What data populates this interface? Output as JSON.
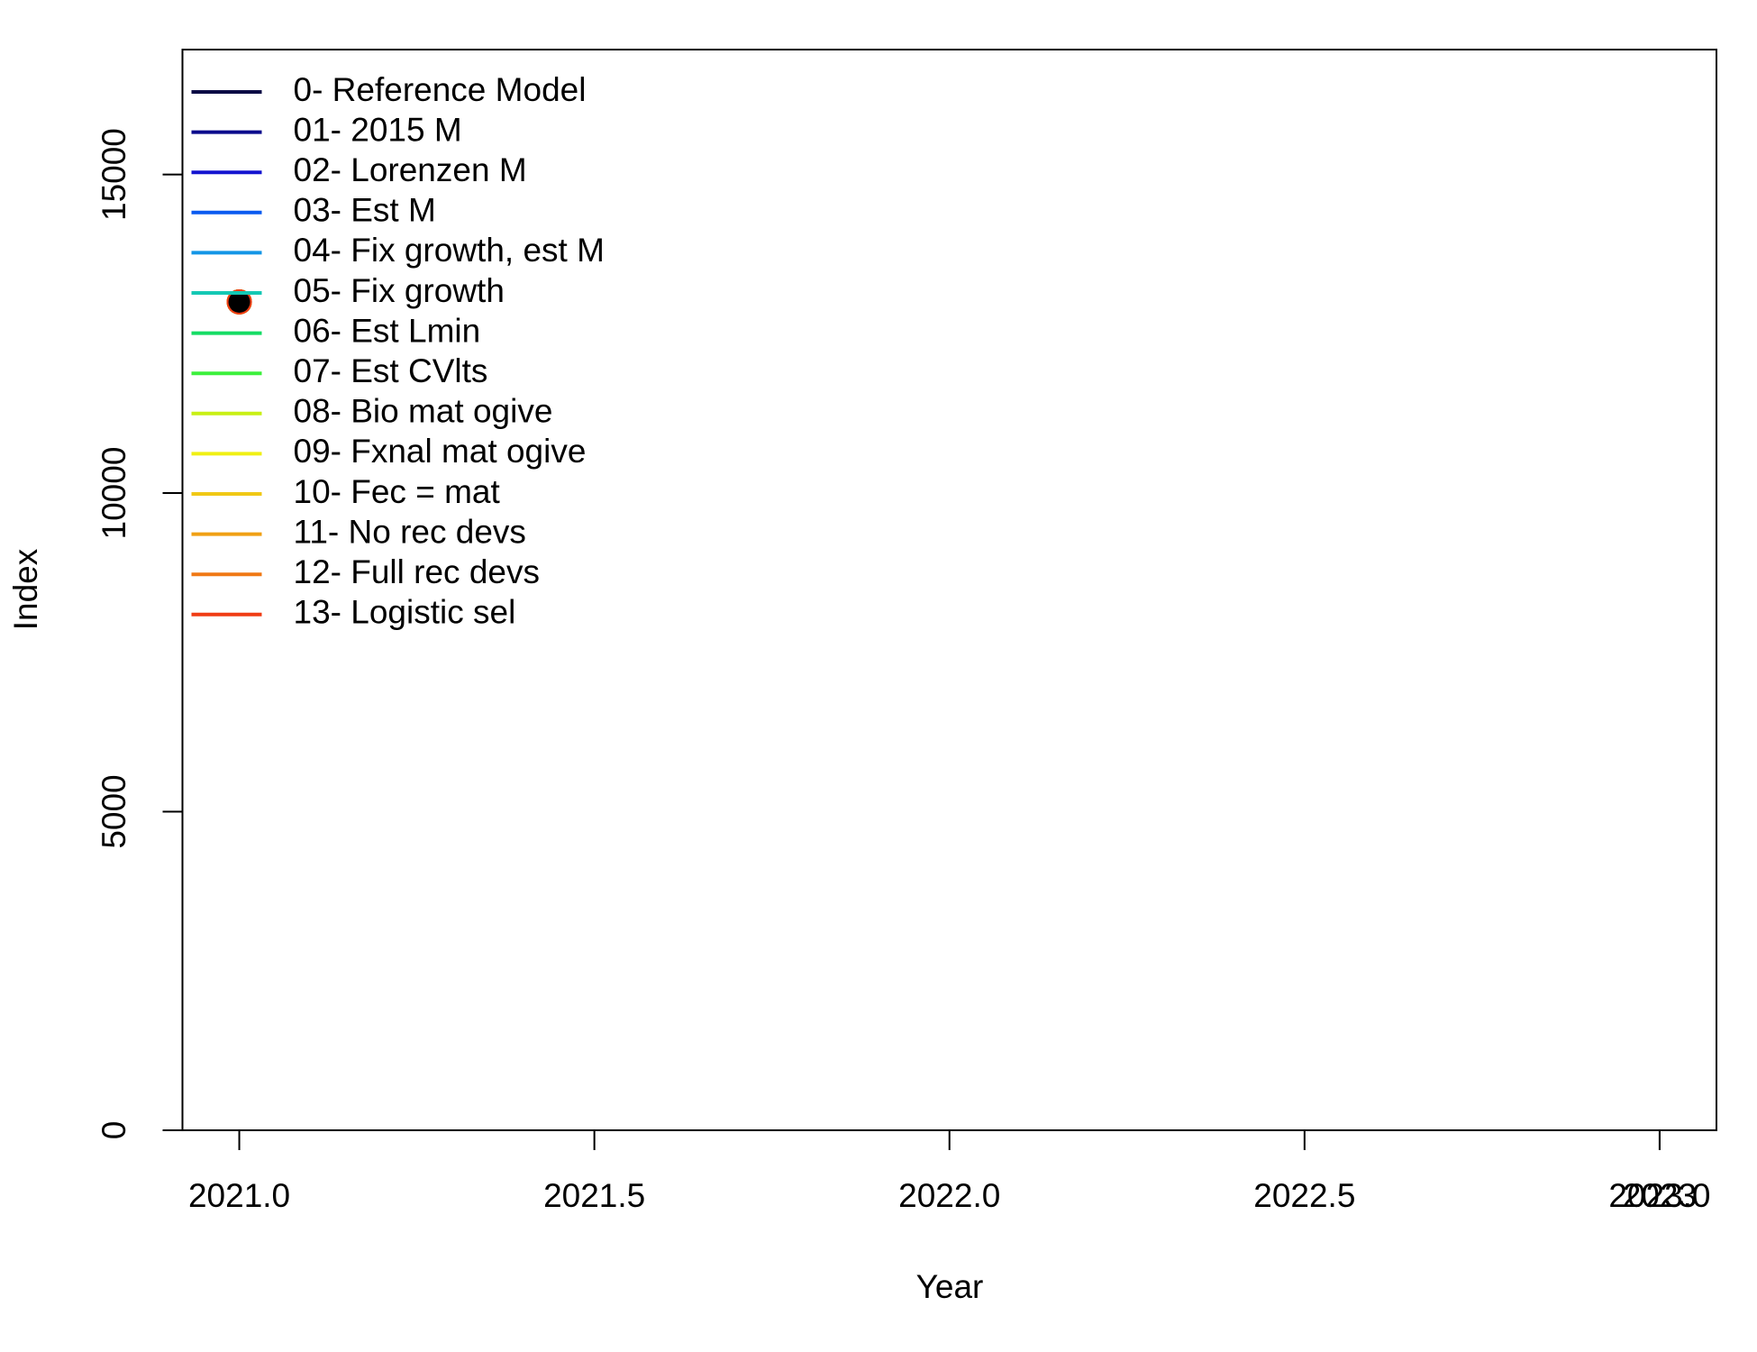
{
  "chart_data": {
    "type": "scatter",
    "x_label": "Year",
    "y_label": "Index",
    "xlim": [
      2020.92,
      2023.08
    ],
    "ylim": [
      0,
      16960
    ],
    "xticks": [
      {
        "value": 2021,
        "label": "2021.0"
      },
      {
        "value": 2021.5,
        "label": "2021.5"
      },
      {
        "value": 2022,
        "label": "2022.0"
      },
      {
        "value": 2022.5,
        "label": "2022.5"
      },
      {
        "value": 2023,
        "label": "2023.0"
      },
      2023
    ],
    "yticks": [
      0,
      5000,
      10000,
      15000
    ],
    "legend": "top-left",
    "x": [
      2021
    ],
    "series": [
      {
        "name": "0- Reference Model",
        "color": "#0b0b45",
        "values": [
          13000
        ]
      },
      {
        "name": "01- 2015 M",
        "color": "#0a0a8c",
        "values": [
          13000
        ]
      },
      {
        "name": "02- Lorenzen M",
        "color": "#1414d0",
        "values": [
          13000
        ]
      },
      {
        "name": "03- Est M",
        "color": "#0a5af0",
        "values": [
          13000
        ]
      },
      {
        "name": "04- Fix growth, est M",
        "color": "#1496e6",
        "values": [
          13000
        ]
      },
      {
        "name": "05- Fix growth",
        "color": "#14c8b4",
        "values": [
          13000
        ]
      },
      {
        "name": "06- Est Lmin",
        "color": "#14dc64",
        "values": [
          13000
        ]
      },
      {
        "name": "07- Est CVlts",
        "color": "#3cf03c",
        "values": [
          13000
        ]
      },
      {
        "name": "08- Bio mat ogive",
        "color": "#c8f014",
        "values": [
          13000
        ]
      },
      {
        "name": "09- Fxnal mat ogive",
        "color": "#f0f014",
        "values": [
          13000
        ]
      },
      {
        "name": "10- Fec = mat",
        "color": "#f0c814",
        "values": [
          13000
        ]
      },
      {
        "name": "11- No rec devs",
        "color": "#f0a014",
        "values": [
          13000
        ]
      },
      {
        "name": "12- Full rec devs",
        "color": "#f07814",
        "values": [
          13000
        ]
      },
      {
        "name": "13- Logistic sel",
        "color": "#f03c14",
        "values": [
          13000
        ]
      }
    ],
    "observed": {
      "color": "#000000",
      "values": [
        13000
      ]
    }
  }
}
